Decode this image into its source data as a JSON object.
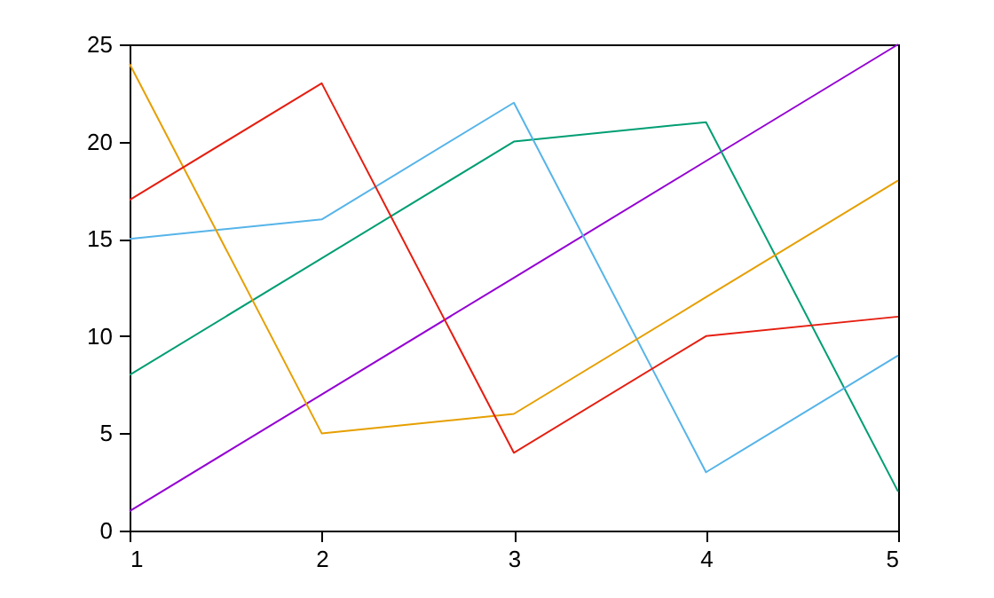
{
  "chart_data": {
    "type": "line",
    "x": [
      1,
      2,
      3,
      4,
      5
    ],
    "xlim": [
      1,
      5
    ],
    "xticks": [
      1,
      2,
      3,
      4,
      5
    ],
    "ylim": [
      0,
      25
    ],
    "yticks": [
      0,
      5,
      10,
      15,
      20,
      25
    ],
    "grid": false,
    "legend": false,
    "marker": "none",
    "line_style": "solid",
    "series": [
      {
        "color": "#9400d3",
        "values": [
          1,
          7,
          13,
          19,
          25
        ]
      },
      {
        "color": "#009e73",
        "values": [
          8,
          14,
          20,
          21,
          2
        ]
      },
      {
        "color": "#56b4e9",
        "values": [
          15,
          16,
          22,
          3,
          9
        ]
      },
      {
        "color": "#e69f00",
        "values": [
          24,
          5,
          6,
          12,
          18
        ]
      },
      {
        "color": "#e51e10",
        "values": [
          17,
          23,
          4,
          10,
          11
        ]
      }
    ]
  }
}
